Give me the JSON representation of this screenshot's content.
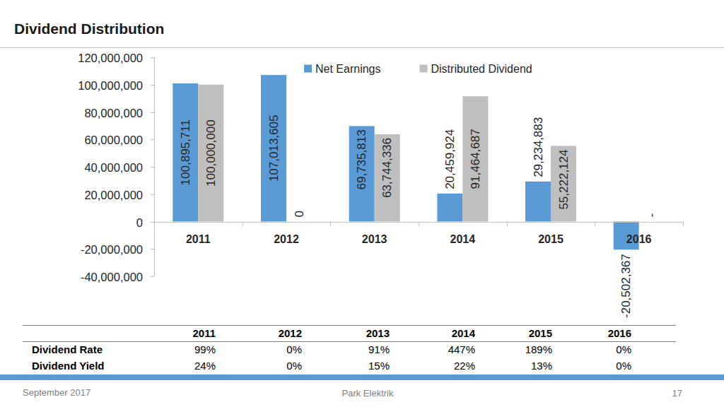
{
  "chart_data": {
    "type": "bar",
    "title": "Dividend Distribution",
    "categories": [
      "2011",
      "2012",
      "2013",
      "2014",
      "2015",
      "2016"
    ],
    "series": [
      {
        "name": "Net Earnings",
        "color": "#5b9bd5",
        "values": [
          100895711,
          107013605,
          69735813,
          20459924,
          29234883,
          -20502367
        ],
        "value_labels": [
          "100,895,711",
          "107,013,605",
          "69,735,813",
          "20,459,924",
          "29,234,883",
          "-20,502,367"
        ]
      },
      {
        "name": "Distributed Dividend",
        "color": "#bfbfbf",
        "values": [
          100000000,
          0,
          63744336,
          91464687,
          55222124,
          0
        ],
        "value_labels": [
          "100,000,000",
          "0",
          "63,744,336",
          "91,464,687",
          "55,222,124",
          "-"
        ]
      }
    ],
    "ylim": [
      -40000000,
      120000000
    ],
    "yticks": [
      {
        "value": -40000000,
        "label": "-40,000,000"
      },
      {
        "value": -20000000,
        "label": "-20,000,000"
      },
      0,
      {
        "value": 20000000,
        "label": "20,000,000"
      },
      {
        "value": 40000000,
        "label": "40,000,000"
      },
      {
        "value": 60000000,
        "label": "60,000,000"
      },
      {
        "value": 80000000,
        "label": "80,000,000"
      },
      {
        "value": 100000000,
        "label": "100,000,000"
      },
      {
        "value": 120000000,
        "label": "120,000,000"
      }
    ],
    "grid": false,
    "legend": "top",
    "data_labels": true
  },
  "table": {
    "columns": [
      "2011",
      "2012",
      "2013",
      "2014",
      "2015",
      "2016"
    ],
    "rows": [
      {
        "label": "Dividend Rate",
        "values": [
          "99%",
          "0%",
          "91%",
          "447%",
          "189%",
          "0%"
        ]
      },
      {
        "label": "Dividend Yield",
        "values": [
          "24%",
          "0%",
          "15%",
          "22%",
          "13%",
          "0%"
        ]
      }
    ]
  },
  "footer": {
    "date": "September 2017",
    "company": "Park Elektrik",
    "page": "17"
  }
}
